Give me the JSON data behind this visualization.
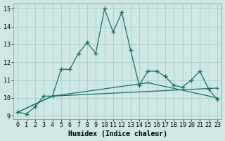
{
  "xlabel": "Humidex (Indice chaleur)",
  "ylabel": "",
  "xlim": [
    -0.5,
    23.5
  ],
  "ylim": [
    8.8,
    15.3
  ],
  "yticks": [
    9,
    10,
    11,
    12,
    13,
    14,
    15
  ],
  "xticks": [
    0,
    1,
    2,
    3,
    4,
    5,
    6,
    7,
    8,
    9,
    10,
    11,
    12,
    13,
    14,
    15,
    16,
    17,
    18,
    19,
    20,
    21,
    22,
    23
  ],
  "bg_color": "#cde8e5",
  "grid_color": "#a8ceca",
  "line_color": "#1a6e65",
  "line1_x": [
    0,
    1,
    2,
    3,
    4,
    5,
    6,
    7,
    8,
    9,
    10,
    11,
    12,
    13,
    14,
    15,
    16,
    17,
    18,
    19,
    20,
    21,
    22,
    23
  ],
  "line1_y": [
    9.2,
    9.1,
    9.5,
    10.1,
    10.1,
    11.6,
    11.6,
    12.5,
    13.1,
    12.5,
    15.0,
    13.7,
    14.8,
    12.7,
    10.7,
    11.5,
    11.5,
    11.2,
    10.7,
    10.6,
    11.0,
    11.5,
    10.5,
    9.9
  ],
  "line2_x": [
    0,
    4,
    23
  ],
  "line2_y": [
    9.2,
    10.1,
    10.55
  ],
  "line3_x": [
    0,
    4,
    15,
    23
  ],
  "line3_y": [
    9.2,
    10.1,
    10.85,
    10.0
  ],
  "tick_fontsize": 6.0,
  "label_fontsize": 7.0
}
